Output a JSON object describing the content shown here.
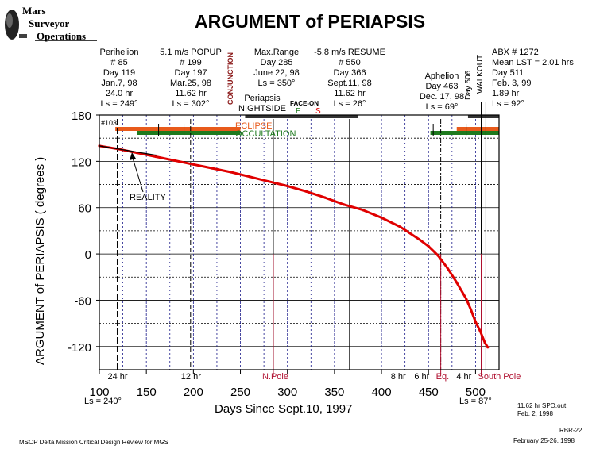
{
  "logo": {
    "lines": [
      "Mars",
      "Surveyor",
      "Operations"
    ],
    "icon": "planet-icon"
  },
  "header": {
    "title": "ARGUMENT of PERIAPSIS"
  },
  "events": {
    "perihelion": [
      "Perihelion",
      "# 85",
      "Day 119",
      "Jan.7, 98",
      "24.0 hr",
      "Ls = 249°"
    ],
    "popup": [
      "5.1 m/s POPUP",
      "# 199",
      "Day 197",
      "Mar.25, 98",
      "11.62 hr",
      "Ls = 302°"
    ],
    "conjunction": "CONJUNCTION",
    "maxrange": [
      "Max.Range",
      "Day 285",
      "June 22, 98",
      "Ls = 350°"
    ],
    "periapsis_nightside": [
      "Periapsis",
      "NIGHTSIDE"
    ],
    "faceon": {
      "label": "FACE-ON",
      "e": "E",
      "s": "S"
    },
    "resume": [
      "-5.8 m/s  RESUME",
      "# 550",
      "Day 366",
      "Sept.11, 98",
      "11.62 hr",
      "Ls = 26°"
    ],
    "aphelion": [
      "Aphelion",
      "Day 463",
      "Dec. 17, 98",
      "Ls = 69°"
    ],
    "day506": "Day 506",
    "walkout": "WALKOUT",
    "abx": [
      "ABX # 1272",
      "Mean LST = 2.01 hrs",
      "Day 511",
      "Feb. 3, 99",
      "1.89 hr",
      "Ls = 92°"
    ],
    "orbit103": "#103",
    "eclipse": "ECLIPSE",
    "occultation": "OCCULTATION",
    "reality": "REALITY"
  },
  "markers": {
    "hr24": "24 hr",
    "hr12": "12 hr",
    "npole": "N.Pole",
    "hr8": "8 hr",
    "hr6": "6 hr",
    "eq": "Eq.",
    "hr4": "4 hr",
    "spole": "South Pole"
  },
  "axis_notes": {
    "ls_left": "Ls = 240°",
    "ls_right": "Ls = 87°"
  },
  "footer": {
    "left": "MSOP Delta Mission Critical Design Review for MGS",
    "right_code": "RBR-22",
    "right_date": "February 25-26, 1998",
    "source_line1": "11.62 hr SPO.out",
    "source_line2": "Feb. 2, 1998"
  },
  "colors": {
    "curve": "#e00000",
    "eclipse": "#e85a1b",
    "occultation": "#1e7a1e",
    "pole_line": "#b01030",
    "conjunction_text": "#8b1a1a",
    "faceon_e": "#1e7a1e",
    "faceon_s": "#e00000"
  },
  "chart_data": {
    "type": "line",
    "title": "ARGUMENT of PERIAPSIS",
    "xlabel": "Days Since Sept.10, 1997",
    "ylabel": "ARGUMENT of PERIAPSIS  ( degrees )",
    "xlim": [
      100,
      525
    ],
    "ylim": [
      -150,
      180
    ],
    "xticks": [
      100,
      150,
      200,
      250,
      300,
      350,
      400,
      450,
      500
    ],
    "yticks": [
      -120,
      -60,
      0,
      60,
      120,
      180
    ],
    "grid": true,
    "series": [
      {
        "name": "Argument of Periapsis",
        "x": [
          100,
          120,
          140,
          160,
          180,
          200,
          220,
          240,
          260,
          280,
          300,
          320,
          340,
          360,
          380,
          400,
          420,
          440,
          450,
          460,
          470,
          480,
          490,
          495,
          500,
          505,
          510,
          513
        ],
        "y": [
          140,
          136,
          131,
          126,
          121,
          116,
          111,
          106,
          100,
          94,
          88,
          81,
          73,
          64,
          57,
          47,
          35,
          19,
          10,
          -2,
          -18,
          -37,
          -58,
          -72,
          -88,
          -100,
          -115,
          -121
        ]
      },
      {
        "name": "REALITY",
        "x": [
          100,
          110,
          120,
          130,
          140,
          150,
          160
        ],
        "y": [
          140,
          138,
          136,
          134,
          132,
          130,
          128
        ]
      }
    ],
    "bands": [
      {
        "name": "ECLIPSE",
        "ranges": [
          [
            117,
            250
          ],
          [
            480,
            525
          ]
        ]
      },
      {
        "name": "OCCULTATION",
        "ranges": [
          [
            140,
            250
          ],
          [
            452,
            525
          ]
        ]
      },
      {
        "name": "CONJUNCTION",
        "ranges": [
          [
            255,
            375
          ],
          [
            492,
            525
          ]
        ]
      }
    ],
    "event_days": [
      119,
      197,
      285,
      366,
      463,
      506,
      511
    ],
    "markers": [
      {
        "label": "24 hr",
        "x": 119
      },
      {
        "label": "12 hr",
        "x": 197
      },
      {
        "label": "N.Pole",
        "x": 285
      },
      {
        "label": "8 hr",
        "x": 420
      },
      {
        "label": "6 hr",
        "x": 445
      },
      {
        "label": "Eq.",
        "x": 463
      },
      {
        "label": "4 hr",
        "x": 478
      },
      {
        "label": "South Pole",
        "x": 506
      }
    ]
  }
}
